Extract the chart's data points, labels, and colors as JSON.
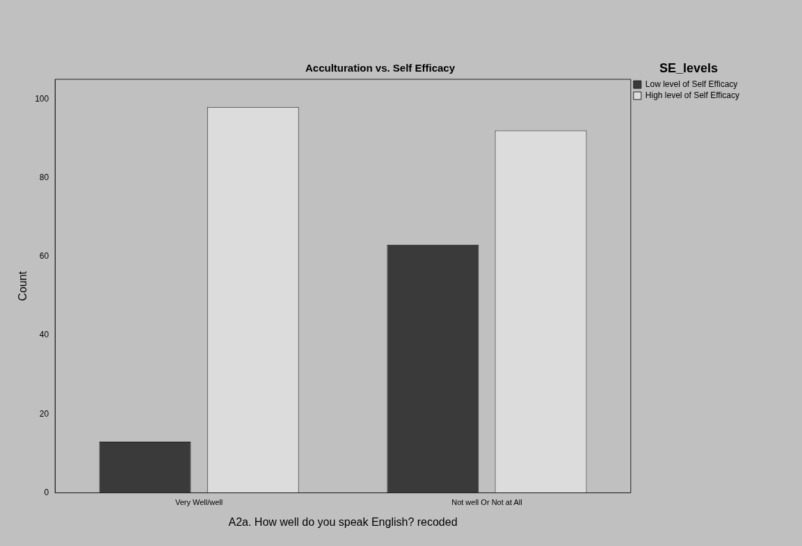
{
  "chart_data": {
    "type": "bar",
    "title": "Acculturation vs. Self Efficacy",
    "xlabel": "A2a. How well do you speak English? recoded",
    "ylabel": "Count",
    "legend_title": "SE_levels",
    "legend": "top right",
    "grid": false,
    "categories": [
      "Very Well/well",
      "Not well Or Not at All"
    ],
    "series": [
      {
        "name": "Low level of Self Efficacy",
        "color": "#3a3a3a",
        "values": [
          13,
          63
        ]
      },
      {
        "name": "High level of Self Efficacy",
        "color": "#dcdcdc",
        "values": [
          98,
          92
        ]
      }
    ],
    "ylim": [
      0,
      105
    ],
    "yticks": [
      0,
      20,
      40,
      60,
      80,
      100
    ]
  }
}
